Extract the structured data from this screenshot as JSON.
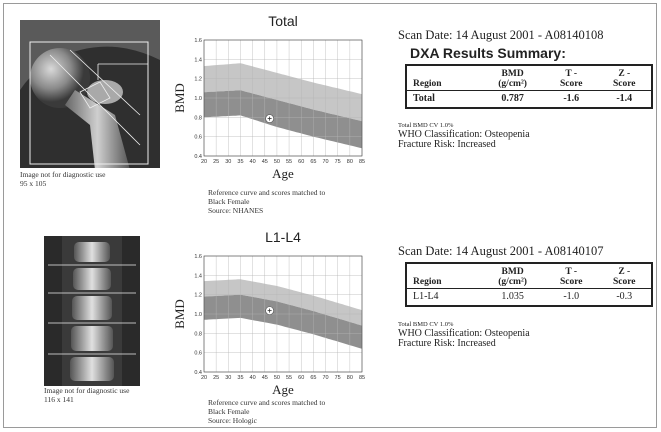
{
  "panels": [
    {
      "id": "hip",
      "image_note": "Image not for diagnostic use",
      "image_dims": "95 x 105",
      "chart": {
        "title": "Total",
        "ylabel": "BMD",
        "xlabel": "Age",
        "y_ticks": [
          "1.6",
          "1.4",
          "1.2",
          "1.0",
          "0.8",
          "0.6",
          "0.4"
        ],
        "x_ticks": [
          "20",
          "25",
          "30",
          "35",
          "40",
          "45",
          "50",
          "55",
          "60",
          "65",
          "70",
          "75",
          "80",
          "85"
        ],
        "patient": {
          "age": 47,
          "bmd": 0.787
        },
        "band_upper": [
          [
            20,
            1.33
          ],
          [
            35,
            1.36
          ],
          [
            50,
            1.26
          ],
          [
            65,
            1.16
          ],
          [
            85,
            1.04
          ]
        ],
        "band_mid": [
          [
            20,
            1.06
          ],
          [
            35,
            1.08
          ],
          [
            50,
            0.98
          ],
          [
            65,
            0.88
          ],
          [
            85,
            0.76
          ]
        ],
        "band_lower": [
          [
            20,
            0.8
          ],
          [
            35,
            0.82
          ],
          [
            50,
            0.7
          ],
          [
            65,
            0.6
          ],
          [
            85,
            0.48
          ]
        ]
      },
      "reference_lines": [
        "Reference curve and scores matched to",
        "Black Female",
        "Source: NHANES"
      ],
      "scan_date": "Scan Date: 14 August 2001 - A08140108",
      "summary_title": "DXA Results Summary:",
      "table": {
        "headers": [
          "Region",
          "BMD",
          "(g/cm²)",
          "T -",
          "Score",
          "Z -",
          "Score"
        ],
        "row": {
          "region": "Total",
          "bmd": "0.787",
          "t": "-1.6",
          "z": "-1.4"
        }
      },
      "cv": "Total BMD CV 1.0%",
      "who": "WHO Classification: Osteopenia",
      "risk": "Fracture Risk: Increased"
    },
    {
      "id": "spine",
      "image_note": "Image not for diagnostic use",
      "image_dims": "116 x 141",
      "chart": {
        "title": "L1-L4",
        "ylabel": "BMD",
        "xlabel": "Age",
        "y_ticks": [
          "1.6",
          "1.4",
          "1.2",
          "1.0",
          "0.8",
          "0.6",
          "0.4"
        ],
        "x_ticks": [
          "20",
          "25",
          "30",
          "35",
          "40",
          "45",
          "50",
          "55",
          "60",
          "65",
          "70",
          "75",
          "80",
          "85"
        ],
        "patient": {
          "age": 47,
          "bmd": 1.035
        },
        "band_upper": [
          [
            20,
            1.34
          ],
          [
            35,
            1.36
          ],
          [
            50,
            1.29
          ],
          [
            65,
            1.19
          ],
          [
            85,
            1.04
          ]
        ],
        "band_mid": [
          [
            20,
            1.18
          ],
          [
            35,
            1.2
          ],
          [
            50,
            1.13
          ],
          [
            65,
            1.03
          ],
          [
            85,
            0.88
          ]
        ],
        "band_lower": [
          [
            20,
            0.94
          ],
          [
            35,
            0.96
          ],
          [
            50,
            0.89
          ],
          [
            65,
            0.79
          ],
          [
            85,
            0.64
          ]
        ]
      },
      "reference_lines": [
        "Reference curve and scores matched to",
        "Black Female",
        "Source: Hologic"
      ],
      "scan_date": "Scan Date: 14 August 2001 - A08140107",
      "summary_title": "",
      "table": {
        "headers": [
          "Region",
          "BMD",
          "(g/cm²)",
          "T -",
          "Score",
          "Z -",
          "Score"
        ],
        "row": {
          "region": "L1-L4",
          "bmd": "1.035",
          "t": "-1.0",
          "z": "-0.3"
        }
      },
      "cv": "Total BMD CV 1.0%",
      "who": "WHO Classification: Osteopenia",
      "risk": "Fracture Risk: Increased"
    }
  ],
  "colors": {
    "band_light": "#c6c6c6",
    "band_dark": "#8f8f8f",
    "grid": "#b5b5b5",
    "axis": "#444444"
  }
}
